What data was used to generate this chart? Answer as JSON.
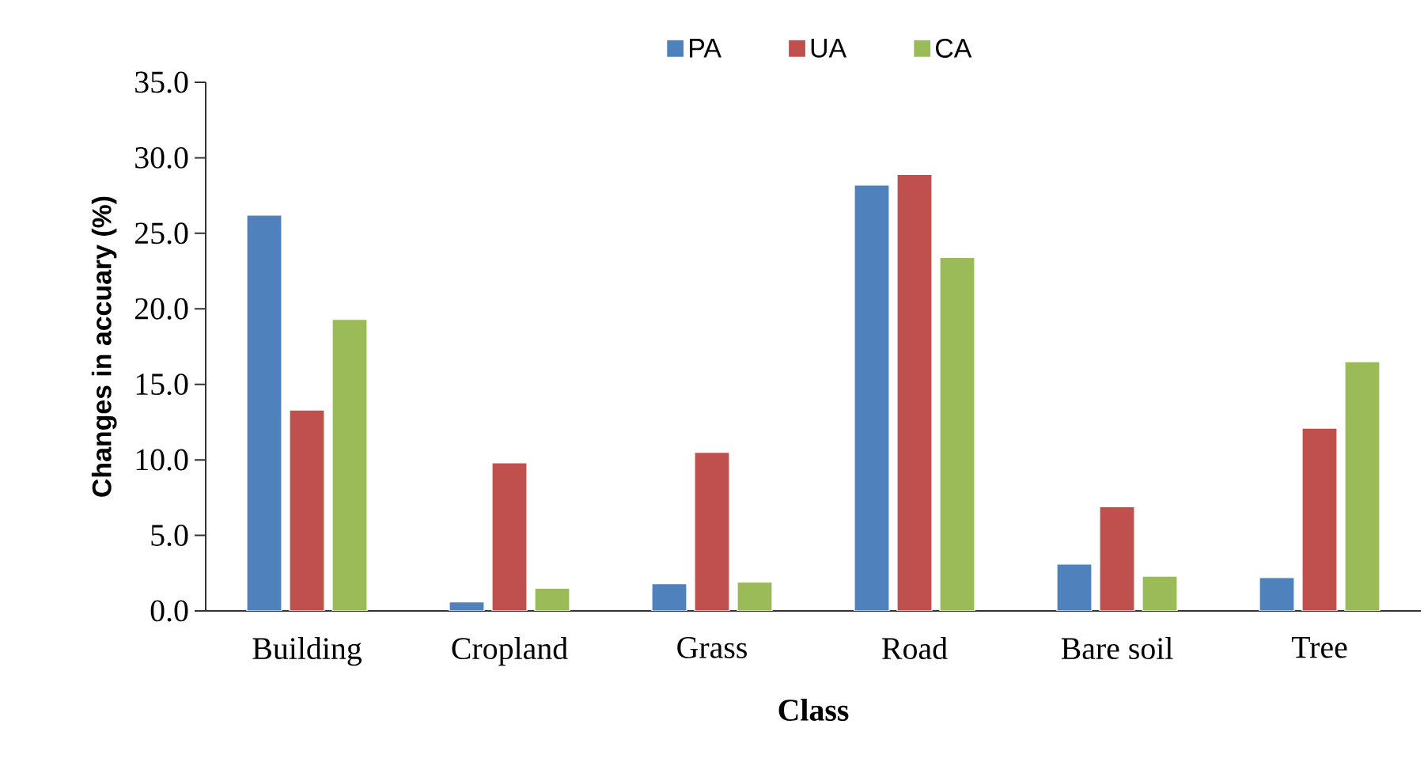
{
  "chart_data": {
    "type": "bar",
    "xlabel": "Class",
    "ylabel": "Changes in accuary (%)",
    "categories": [
      "Building",
      "Cropland",
      "Grass",
      "Road",
      "Bare soil",
      "Tree"
    ],
    "series": [
      {
        "name": "PA",
        "color": "#4f81bd",
        "values": [
          26.2,
          0.6,
          1.8,
          28.2,
          3.1,
          2.2
        ]
      },
      {
        "name": "UA",
        "color": "#c0504d",
        "values": [
          13.3,
          9.8,
          10.5,
          28.9,
          6.9,
          12.1
        ]
      },
      {
        "name": "CA",
        "color": "#9bbb59",
        "values": [
          19.3,
          1.5,
          1.9,
          23.4,
          2.3,
          16.5
        ]
      }
    ],
    "ylim": [
      0,
      35
    ],
    "yticks": [
      {
        "value": 0,
        "label": "0.0"
      },
      {
        "value": 5,
        "label": "5.0"
      },
      {
        "value": 10,
        "label": "10.0"
      },
      {
        "value": 15,
        "label": "15.0"
      },
      {
        "value": 20,
        "label": "20.0"
      },
      {
        "value": 25,
        "label": "25.0"
      },
      {
        "value": 30,
        "label": "30.0"
      },
      {
        "value": 35,
        "label": "35.0"
      }
    ],
    "grid": false,
    "legend": "top"
  }
}
